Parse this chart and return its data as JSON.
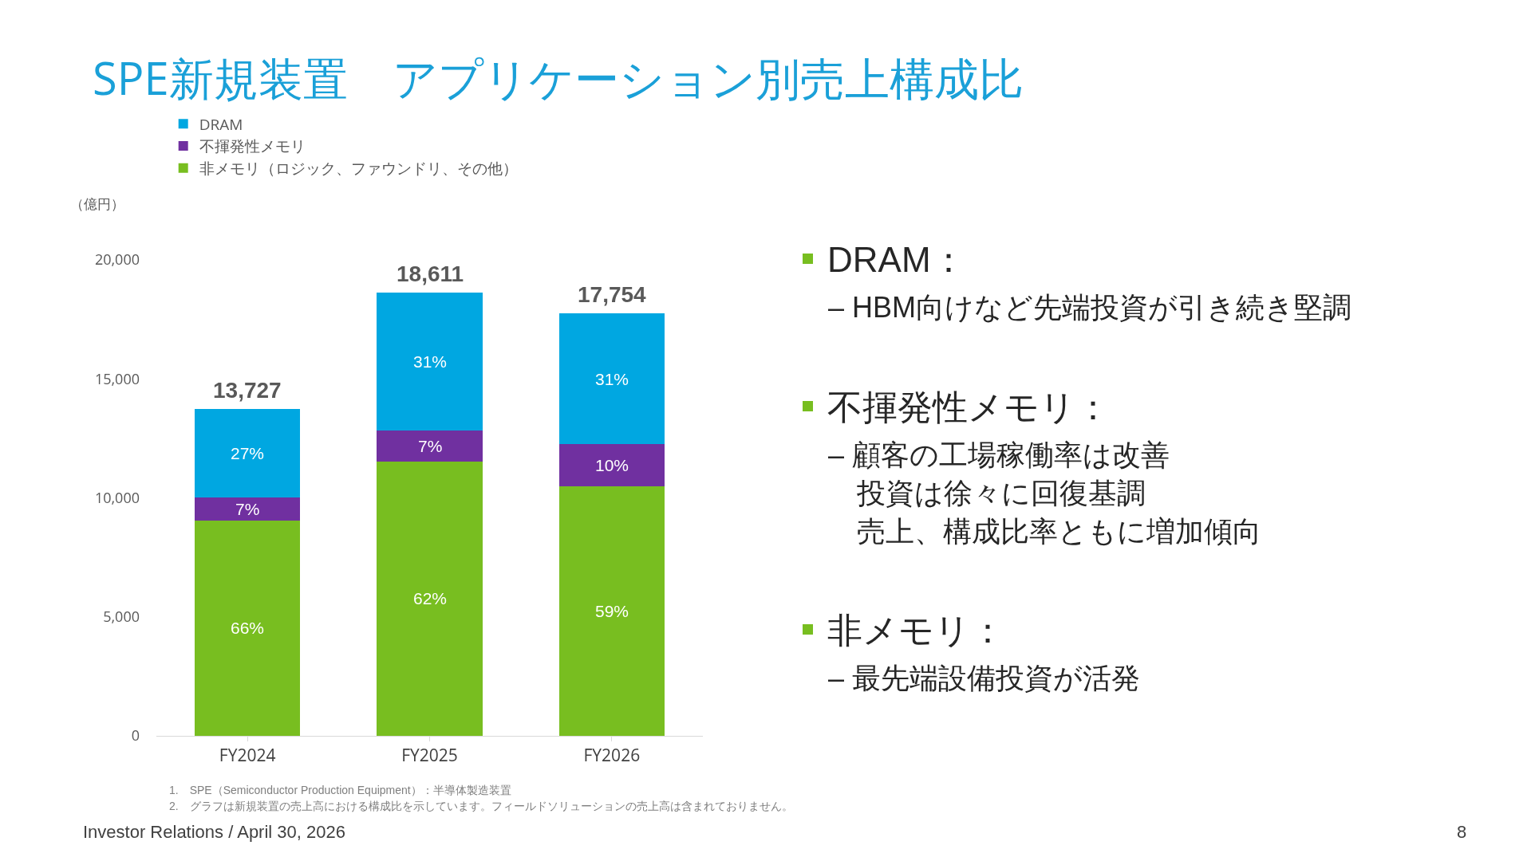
{
  "chart_data": {
    "type": "bar",
    "title": "SPE新規装置　アプリケーション別売上構成比",
    "ylabel": "（億円）",
    "categories": [
      "FY2024",
      "FY2025",
      "FY2026"
    ],
    "stacked": true,
    "series": [
      {
        "name": "非メモリ（ロジック、ファウンドリ、その他）",
        "color": "#78be20",
        "values": [
          9060,
          11539,
          10475
        ]
      },
      {
        "name": "不揮発性メモリ",
        "color": "#7030a0",
        "values": [
          961,
          1303,
          1775
        ]
      },
      {
        "name": "DRAM",
        "color": "#00a7e1",
        "values": [
          3706,
          5769,
          5504
        ]
      }
    ],
    "totals": [
      "13,727",
      "18,611",
      "17,754"
    ],
    "ylim": [
      0,
      20000
    ],
    "yticks": [
      {
        "value": 0,
        "label": "0"
      },
      {
        "value": 5000,
        "label": "5,000"
      },
      {
        "value": 10000,
        "label": "10,000"
      },
      {
        "value": 15000,
        "label": "15,000"
      },
      {
        "value": 20000,
        "label": "20,000"
      }
    ],
    "grid": false,
    "legend": "top left",
    "annotations": [
      "DRAM：",
      "– HBM向けなど先端投資が引き続き堅調",
      "不揮発性メモリ：",
      "– 顧客の工場稼働率は改善",
      "投資は徐々に回復基調",
      "売上、構成比率ともに増加傾向",
      "非メモリ：",
      "– 最先端設備投資が活発",
      "1.　SPE（Semiconductor Production Equipment）：半導体製造装置",
      "2.　グラフは新規装置の売上高における構成比を示しています。フィールドソリューションの売上高は含まれておりません。",
      "Investor Relations / April 30, 2026",
      "8",
      "66%",
      "7%",
      "27%",
      "62%",
      "7%",
      "31%",
      "59%",
      "10%",
      "31%"
    ]
  }
}
